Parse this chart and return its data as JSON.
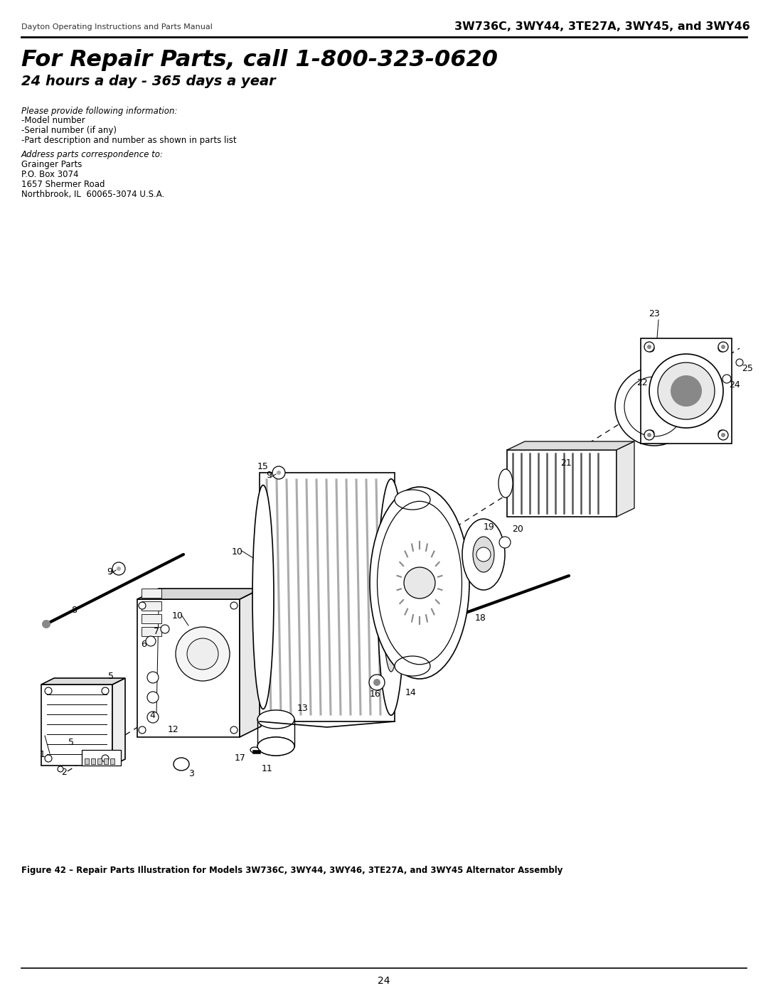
{
  "page_title_left": "Dayton Operating Instructions and Parts Manual",
  "page_title_right": "3W736C, 3WY44, 3TE27A, 3WY45, and 3WY46",
  "main_heading": "For Repair Parts, call 1-800-323-0620",
  "sub_heading": "24 hours a day - 365 days a year",
  "info_label": "Please provide following information:",
  "info_items": [
    "-Model number",
    "-Serial number (if any)",
    "-Part description and number as shown in parts list"
  ],
  "address_label": "Address parts correspondence to:",
  "address_lines": [
    "Grainger Parts",
    "P.O. Box 3074",
    "1657 Shermer Road",
    "Northbrook, IL  60065-3074 U.S.A."
  ],
  "figure_caption": "Figure 42 – Repair Parts Illustration for Models 3W736C, 3WY44, 3WY46, 3TE27A, and 3WY45 Alternator Assembly",
  "page_number": "24",
  "bg_color": "#ffffff",
  "lc": "#000000"
}
